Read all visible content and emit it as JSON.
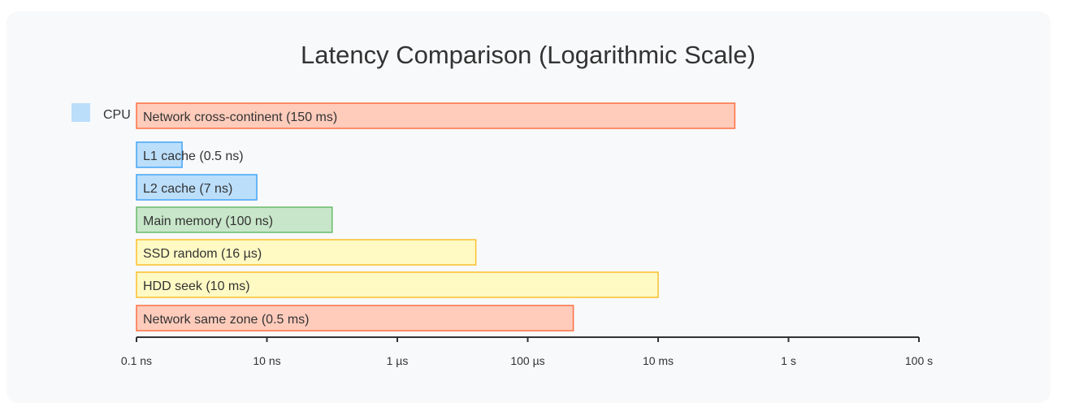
{
  "chart_data": {
    "type": "bar",
    "orientation": "horizontal",
    "title": "Latency Comparison (Logarithmic Scale)",
    "x_scale": "log",
    "x_unit": "s",
    "xlim": [
      1e-10,
      100
    ],
    "ticks": [
      {
        "value": 1e-10,
        "label": "0.1 ns"
      },
      {
        "value": 1e-08,
        "label": "10 ns"
      },
      {
        "value": 1e-06,
        "label": "1 µs"
      },
      {
        "value": 0.0001,
        "label": "100 µs"
      },
      {
        "value": 0.01,
        "label": "10 ms"
      },
      {
        "value": 1,
        "label": "1 s"
      },
      {
        "value": 100,
        "label": "100 s"
      }
    ],
    "legend": [
      {
        "label": "CPU",
        "color": "#bbdefb"
      }
    ],
    "colors": {
      "cpu": {
        "fill": "#bbdefb",
        "stroke": "#42a5f5"
      },
      "memory": {
        "fill": "#c8e6c9",
        "stroke": "#66bb6a"
      },
      "storage": {
        "fill": "#fff9c4",
        "stroke": "#fbc02d"
      },
      "network": {
        "fill": "#ffccbc",
        "stroke": "#ff7043"
      }
    },
    "bars": [
      {
        "label": "Network cross-continent (150 ms)",
        "value": 0.15,
        "group": "network"
      },
      {
        "label": "L1 cache (0.5 ns)",
        "value": 5e-10,
        "group": "cpu"
      },
      {
        "label": "L2 cache (7 ns)",
        "value": 7e-09,
        "group": "cpu"
      },
      {
        "label": "Main memory (100 ns)",
        "value": 1e-07,
        "group": "memory"
      },
      {
        "label": "SSD random (16 µs)",
        "value": 1.6e-05,
        "group": "storage"
      },
      {
        "label": "HDD seek (10 ms)",
        "value": 0.01,
        "group": "storage"
      },
      {
        "label": "Network same zone (0.5 ms)",
        "value": 0.0005,
        "group": "network"
      }
    ]
  }
}
